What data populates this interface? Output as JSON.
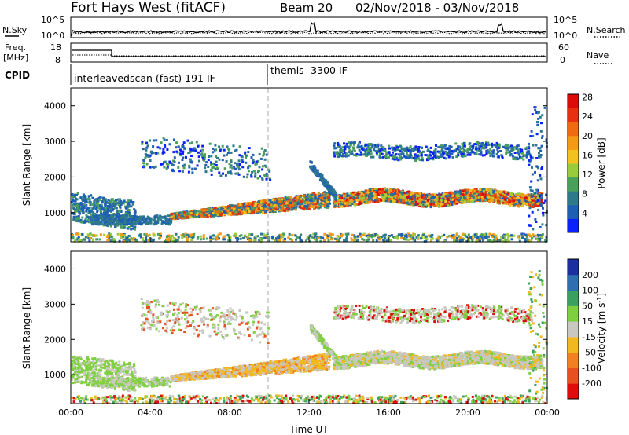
{
  "header": {
    "station": "Fort Hays West (fitACF)",
    "beam": "Beam 20",
    "date_range": "02/Nov/2018 - 03/Nov/2018"
  },
  "top_panel": {
    "left_label": "N.Sky",
    "right_label": "N.Search",
    "left_ticks": [
      "10^5",
      "10^0"
    ],
    "right_ticks": [
      "10^5",
      "10^0"
    ]
  },
  "freq_panel": {
    "left_label_1": "Freq.",
    "left_label_2": "[MHz]",
    "right_label": "Nave",
    "left_ticks": [
      "18",
      "8"
    ],
    "right_ticks": [
      "60",
      "0"
    ]
  },
  "cpid": {
    "label": "CPID",
    "segment_1": "interleavedscan (fast) 191 IF",
    "segment_2": "themis -3300 IF"
  },
  "chart_data": [
    {
      "type": "heatmap",
      "name": "power",
      "ylabel": "Slant Range [km]",
      "xlabel": "Time UT",
      "x_ticks": [
        "00:00",
        "04:00",
        "08:00",
        "12:00",
        "16:00",
        "20:00",
        "00:00"
      ],
      "y_ticks": [
        "1000",
        "2000",
        "3000",
        "4000"
      ],
      "ylim": [
        180,
        4500
      ],
      "xlim_hours": [
        0,
        24
      ],
      "colorbar_label": "Power [dB]",
      "colorbar_ticks": [
        "4",
        "8",
        "12",
        "16",
        "20",
        "24",
        "28"
      ],
      "colorbar_colors": [
        "#0a20ff",
        "#1e5fb4",
        "#2f7a8a",
        "#4aa05a",
        "#9acb3c",
        "#f2c21e",
        "#f49a14",
        "#f06a10",
        "#e83010",
        "#dd0a0a"
      ]
    },
    {
      "type": "heatmap",
      "name": "velocity",
      "ylabel": "Slant Range [km]",
      "xlabel": "Time UT",
      "x_ticks": [
        "00:00",
        "04:00",
        "08:00",
        "12:00",
        "16:00",
        "20:00",
        "00:00"
      ],
      "y_ticks": [
        "1000",
        "2000",
        "3000",
        "4000"
      ],
      "ylim": [
        180,
        4500
      ],
      "xlim_hours": [
        0,
        24
      ],
      "colorbar_label": "Velocity [m s^-1]",
      "colorbar_ticks": [
        "200",
        "100",
        "50",
        "15",
        "-15",
        "-50",
        "-100",
        "-200"
      ],
      "colorbar_colors": [
        "#1c2fa0",
        "#2f6fb0",
        "#3aa060",
        "#7ed040",
        "#c8c8c0",
        "#f2b820",
        "#f08020",
        "#e85020",
        "#e00c0c"
      ]
    }
  ]
}
